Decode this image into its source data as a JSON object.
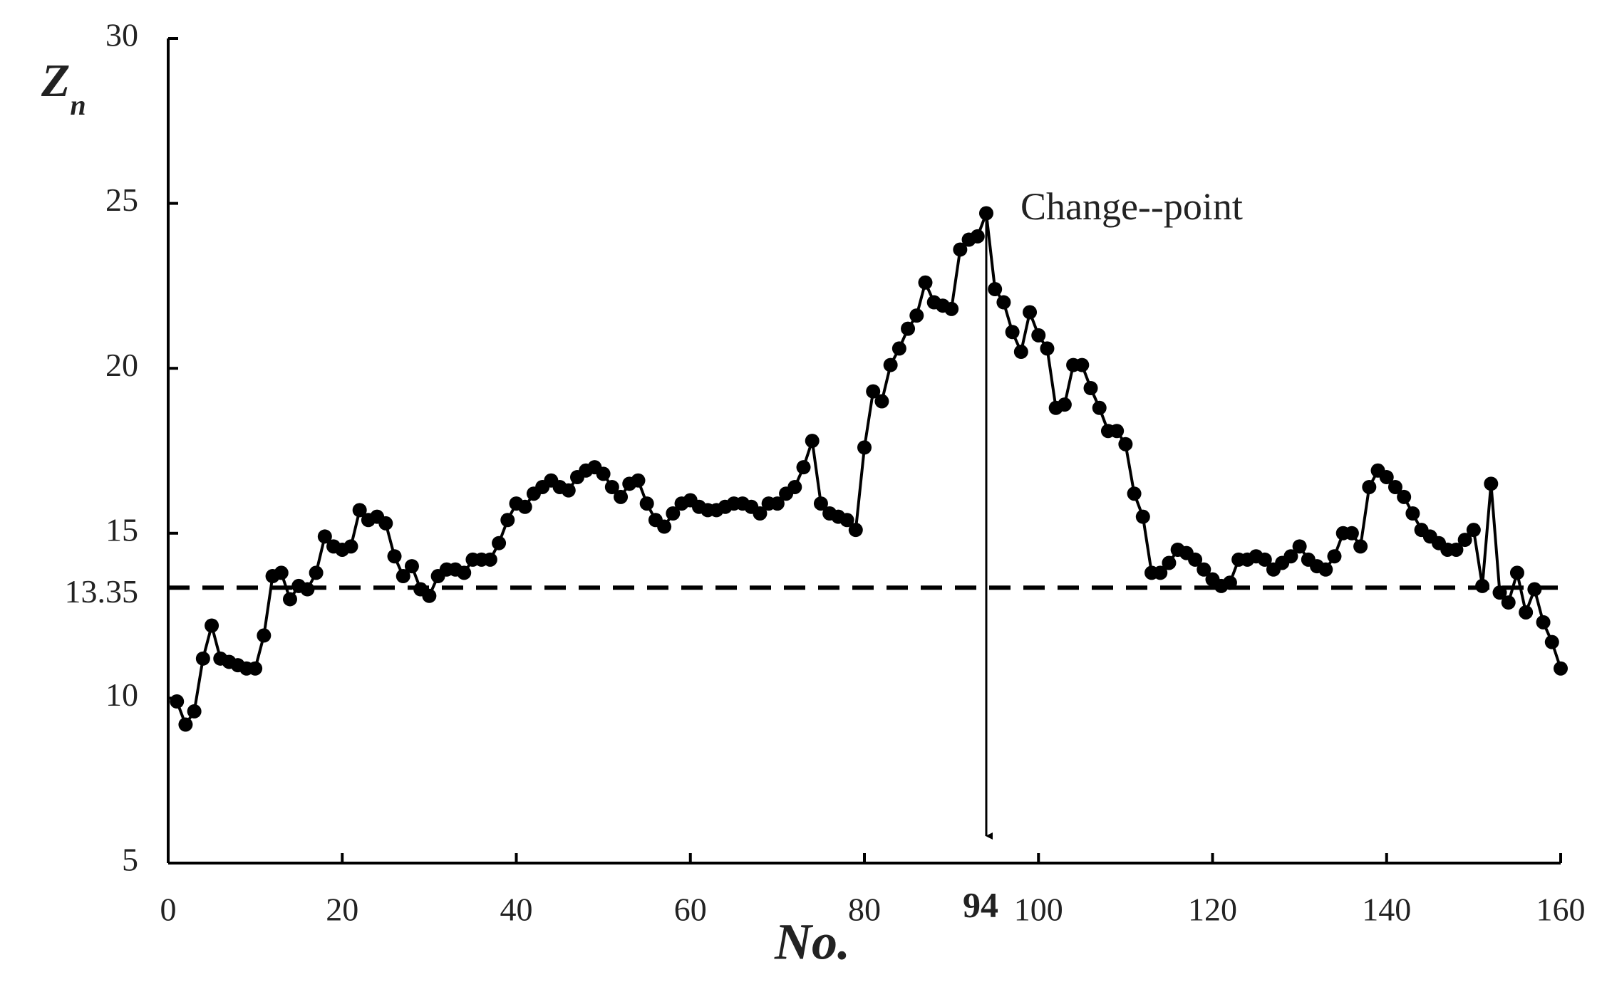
{
  "chart_data": {
    "type": "line",
    "ylabel": "Z",
    "ylabel_subscript": "n",
    "xlabel": "No.",
    "x": [
      1,
      2,
      3,
      4,
      5,
      6,
      7,
      8,
      9,
      10,
      11,
      12,
      13,
      14,
      15,
      16,
      17,
      18,
      19,
      20,
      21,
      22,
      23,
      24,
      25,
      26,
      27,
      28,
      29,
      30,
      31,
      32,
      33,
      34,
      35,
      36,
      37,
      38,
      39,
      40,
      41,
      42,
      43,
      44,
      45,
      46,
      47,
      48,
      49,
      50,
      51,
      52,
      53,
      54,
      55,
      56,
      57,
      58,
      59,
      60,
      61,
      62,
      63,
      64,
      65,
      66,
      67,
      68,
      69,
      70,
      71,
      72,
      73,
      74,
      75,
      76,
      77,
      78,
      79,
      80,
      81,
      82,
      83,
      84,
      85,
      86,
      87,
      88,
      89,
      90,
      91,
      92,
      93,
      94,
      95,
      96,
      97,
      98,
      99,
      100,
      101,
      102,
      103,
      104,
      105,
      106,
      107,
      108,
      109,
      110,
      111,
      112,
      113,
      114,
      115,
      116,
      117,
      118,
      119,
      120,
      121,
      122,
      123,
      124,
      125,
      126,
      127,
      128,
      129,
      130,
      131,
      132,
      133,
      134,
      135,
      136,
      137,
      138,
      139,
      140,
      141,
      142,
      143,
      144,
      145,
      146,
      147,
      148,
      149,
      150,
      151,
      152,
      153,
      154,
      155,
      156,
      157,
      158,
      159,
      160
    ],
    "series": [
      {
        "color": "#000000",
        "values": [
          9.9,
          9.2,
          9.6,
          11.2,
          12.2,
          11.2,
          11.1,
          11.0,
          10.9,
          10.9,
          11.9,
          13.7,
          13.8,
          13.0,
          13.4,
          13.3,
          13.8,
          14.9,
          14.6,
          14.5,
          14.6,
          15.7,
          15.4,
          15.5,
          15.3,
          14.3,
          13.7,
          14.0,
          13.3,
          13.1,
          13.7,
          13.9,
          13.9,
          13.8,
          14.2,
          14.2,
          14.2,
          14.7,
          15.4,
          15.9,
          15.8,
          16.2,
          16.4,
          16.6,
          16.4,
          16.3,
          16.7,
          16.9,
          17.0,
          16.8,
          16.4,
          16.1,
          16.5,
          16.6,
          15.9,
          15.4,
          15.2,
          15.6,
          15.9,
          16.0,
          15.8,
          15.7,
          15.7,
          15.8,
          15.9,
          15.9,
          15.8,
          15.6,
          15.9,
          15.9,
          16.2,
          16.4,
          17.0,
          17.8,
          15.9,
          15.6,
          15.5,
          15.4,
          15.1,
          17.6,
          19.3,
          19.0,
          20.1,
          20.6,
          21.2,
          21.6,
          22.6,
          22.0,
          21.9,
          21.8,
          23.6,
          23.9,
          24.0,
          24.7,
          22.4,
          22.0,
          21.1,
          20.5,
          21.7,
          21.0,
          20.6,
          18.8,
          18.9,
          20.1,
          20.1,
          19.4,
          18.8,
          18.1,
          18.1,
          17.7,
          16.2,
          15.5,
          13.8,
          13.8,
          14.1,
          14.5,
          14.4,
          14.2,
          13.9,
          13.6,
          13.4,
          13.5,
          14.2,
          14.2,
          14.3,
          14.2,
          13.9,
          14.1,
          14.3,
          14.6,
          14.2,
          14.0,
          13.9,
          14.3,
          15.0,
          15.0,
          14.6,
          16.4,
          16.9,
          16.7,
          16.4,
          16.1,
          15.6,
          15.1,
          14.9,
          14.7,
          14.5,
          14.5,
          14.8,
          15.1,
          13.4,
          16.5,
          13.2,
          12.9,
          13.8,
          12.6,
          13.3,
          12.3,
          11.7,
          10.9
        ]
      }
    ],
    "threshold": 13.35,
    "change_point": 94,
    "annotation": "Change--point",
    "xlim": [
      0,
      160
    ],
    "xticks": [
      0,
      20,
      40,
      60,
      80,
      100,
      120,
      140,
      160
    ],
    "ylim": [
      5,
      30
    ],
    "yticks": [
      5,
      10,
      15,
      20,
      25,
      30
    ]
  }
}
